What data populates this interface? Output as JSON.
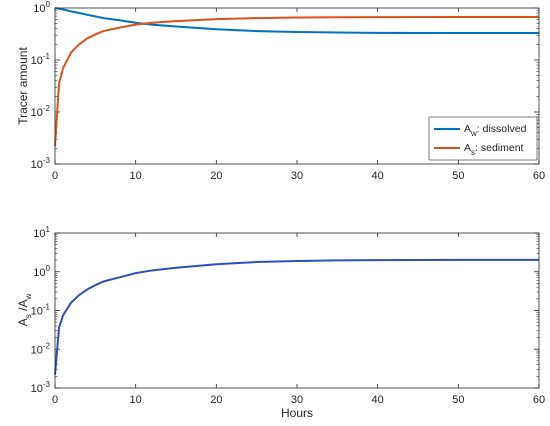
{
  "chart_data": [
    {
      "type": "line",
      "ylabel": "Tracer amount",
      "xlabel": "",
      "yscale": "log",
      "xlim": [
        0,
        60
      ],
      "ylim": [
        0.001,
        1
      ],
      "xticks": [
        "0",
        "10",
        "20",
        "30",
        "40",
        "50",
        "60"
      ],
      "yticks": [
        {
          "base": "10",
          "exp": "0"
        },
        {
          "base": "10",
          "exp": "-1"
        },
        {
          "base": "10",
          "exp": "-2"
        },
        {
          "base": "10",
          "exp": "-3"
        }
      ],
      "legend_position": "bottom-right",
      "x": [
        0,
        0.5,
        1,
        2,
        3,
        4,
        5,
        6,
        8,
        10,
        12,
        15,
        20,
        25,
        30,
        35,
        40,
        50,
        60
      ],
      "series": [
        {
          "legend_main": "A",
          "legend_sub": "w",
          "legend_desc": ": dissolved",
          "color": "#0072BD",
          "values": [
            1.0,
            0.97,
            0.94,
            0.86,
            0.8,
            0.74,
            0.69,
            0.64,
            0.58,
            0.52,
            0.48,
            0.44,
            0.39,
            0.36,
            0.345,
            0.337,
            0.333,
            0.33,
            0.33
          ]
        },
        {
          "legend_main": "A",
          "legend_sub": "s",
          "legend_desc": ": sediment",
          "color": "#D95319",
          "values": [
            0.0022,
            0.035,
            0.07,
            0.14,
            0.2,
            0.26,
            0.31,
            0.36,
            0.42,
            0.48,
            0.52,
            0.56,
            0.61,
            0.64,
            0.655,
            0.663,
            0.667,
            0.67,
            0.67
          ]
        }
      ]
    },
    {
      "type": "line",
      "ylabel_parts": [
        "A",
        "s",
        " /A",
        "w"
      ],
      "xlabel": "Hours",
      "yscale": "log",
      "xlim": [
        0,
        60
      ],
      "ylim": [
        0.001,
        10
      ],
      "xticks": [
        "0",
        "10",
        "20",
        "30",
        "40",
        "50",
        "60"
      ],
      "yticks": [
        {
          "base": "10",
          "exp": "1"
        },
        {
          "base": "10",
          "exp": "0"
        },
        {
          "base": "10",
          "exp": "-1"
        },
        {
          "base": "10",
          "exp": "-2"
        },
        {
          "base": "10",
          "exp": "-3"
        }
      ],
      "x": [
        0,
        0.5,
        1,
        2,
        3,
        4,
        5,
        6,
        8,
        10,
        12,
        15,
        20,
        25,
        30,
        35,
        40,
        50,
        60
      ],
      "series": [
        {
          "color": "#2E4FB8",
          "values": [
            0.0022,
            0.036,
            0.075,
            0.16,
            0.25,
            0.35,
            0.45,
            0.56,
            0.72,
            0.92,
            1.08,
            1.27,
            1.56,
            1.78,
            1.9,
            1.97,
            2.0,
            2.03,
            2.03
          ]
        }
      ]
    }
  ]
}
